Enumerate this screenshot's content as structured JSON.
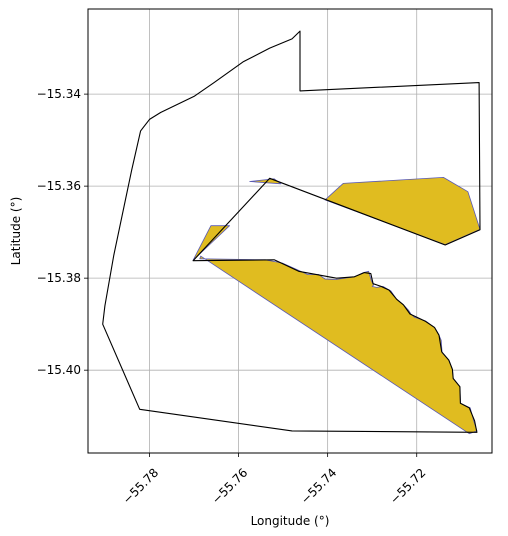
{
  "chart_data": {
    "type": "map",
    "xlabel": "Longitude (°)",
    "ylabel": "Latitude (°)",
    "xlim": [
      -55.7938,
      -55.7031
    ],
    "ylim": [
      -15.418,
      -15.3215
    ],
    "grid": true,
    "x_ticks": [
      {
        "value": -55.78,
        "label": "−55.78"
      },
      {
        "value": -55.76,
        "label": "−55.76"
      },
      {
        "value": -55.74,
        "label": "−55.74"
      },
      {
        "value": -55.72,
        "label": "−55.72"
      }
    ],
    "y_ticks": [
      {
        "value": -15.34,
        "label": "−15.34"
      },
      {
        "value": -15.36,
        "label": "−15.36"
      },
      {
        "value": -15.38,
        "label": "−15.38"
      },
      {
        "value": -15.4,
        "label": "−15.40"
      }
    ],
    "colors": {
      "fill": "#e0bc20",
      "fill_edge": "#5a5ab4",
      "outline": "#000000"
    },
    "filled_regions": [
      [
        [
          -55.7687,
          -15.3758
        ],
        [
          -55.754,
          -15.376
        ],
        [
          -55.7502,
          -15.3767
        ],
        [
          -55.747,
          -15.3781
        ],
        [
          -55.7445,
          -15.3792
        ],
        [
          -55.742,
          -15.3792
        ],
        [
          -55.7406,
          -15.3802
        ],
        [
          -55.7382,
          -15.3803
        ],
        [
          -55.734,
          -15.3797
        ],
        [
          -55.732,
          -15.3788
        ],
        [
          -55.7308,
          -15.3785
        ],
        [
          -55.7302,
          -15.3805
        ],
        [
          -55.7297,
          -15.3815
        ],
        [
          -55.73,
          -15.3818
        ],
        [
          -55.729,
          -15.382
        ],
        [
          -55.7276,
          -15.3818
        ],
        [
          -55.7258,
          -15.3828
        ],
        [
          -55.7245,
          -15.3846
        ],
        [
          -55.723,
          -15.3858
        ],
        [
          -55.7218,
          -15.387
        ],
        [
          -55.7213,
          -15.3878
        ],
        [
          -55.7205,
          -15.3885
        ],
        [
          -55.718,
          -15.3893
        ],
        [
          -55.716,
          -15.3907
        ],
        [
          -55.715,
          -15.3924
        ],
        [
          -55.7145,
          -15.3935
        ],
        [
          -55.7143,
          -15.3962
        ],
        [
          -55.7128,
          -15.3978
        ],
        [
          -55.712,
          -15.3998
        ],
        [
          -55.7118,
          -15.4018
        ],
        [
          -55.7103,
          -15.4036
        ],
        [
          -55.7102,
          -15.4072
        ],
        [
          -55.708,
          -15.4082
        ],
        [
          -55.7072,
          -15.411
        ],
        [
          -55.7065,
          -15.4132
        ],
        [
          -55.7082,
          -15.4138
        ],
        [
          -55.7685,
          -15.3752
        ]
      ],
      [
        [
          -55.7702,
          -15.3761
        ],
        [
          -55.7662,
          -15.3686
        ],
        [
          -55.762,
          -15.3686
        ]
      ],
      [
        [
          -55.7575,
          -15.359
        ],
        [
          -55.752,
          -15.3584
        ],
        [
          -55.7505,
          -15.3595
        ]
      ],
      [
        [
          -55.7406,
          -15.363
        ],
        [
          -55.7365,
          -15.3594
        ],
        [
          -55.714,
          -15.3581
        ],
        [
          -55.7085,
          -15.3612
        ],
        [
          -55.7058,
          -15.3694
        ],
        [
          -55.7136,
          -15.3727
        ]
      ]
    ],
    "outline_polygons": [
      [
        [
          -55.7462,
          -15.3263
        ],
        [
          -55.7462,
          -15.3393
        ],
        [
          -55.706,
          -15.3375
        ],
        [
          -55.7058,
          -15.3695
        ],
        [
          -55.7136,
          -15.3728
        ],
        [
          -55.753,
          -15.3583
        ],
        [
          -55.7702,
          -15.3762
        ],
        [
          -55.752,
          -15.376
        ],
        [
          -55.7465,
          -15.3785
        ],
        [
          -55.742,
          -15.3793
        ],
        [
          -55.738,
          -15.38
        ],
        [
          -55.734,
          -15.3797
        ],
        [
          -55.7318,
          -15.3788
        ],
        [
          -55.7303,
          -15.379
        ],
        [
          -55.7298,
          -15.3812
        ],
        [
          -55.728,
          -15.3818
        ],
        [
          -55.7262,
          -15.3826
        ],
        [
          -55.7245,
          -15.3846
        ],
        [
          -55.723,
          -15.3858
        ],
        [
          -55.7215,
          -15.3878
        ],
        [
          -55.718,
          -15.3894
        ],
        [
          -55.716,
          -15.3907
        ],
        [
          -55.715,
          -15.3924
        ],
        [
          -55.7144,
          -15.396
        ],
        [
          -55.7128,
          -15.3978
        ],
        [
          -55.712,
          -15.3998
        ],
        [
          -55.7118,
          -15.4018
        ],
        [
          -55.7103,
          -15.4036
        ],
        [
          -55.7102,
          -15.4072
        ],
        [
          -55.7082,
          -15.4082
        ],
        [
          -55.707,
          -15.411
        ],
        [
          -55.7065,
          -15.4135
        ],
        [
          -55.748,
          -15.4132
        ],
        [
          -55.7822,
          -15.4085
        ],
        [
          -55.7905,
          -15.39
        ],
        [
          -55.79,
          -15.386
        ],
        [
          -55.788,
          -15.375
        ],
        [
          -55.784,
          -15.3565
        ],
        [
          -55.782,
          -15.348
        ],
        [
          -55.78,
          -15.3455
        ],
        [
          -55.7775,
          -15.344
        ],
        [
          -55.77,
          -15.3405
        ],
        [
          -55.7655,
          -15.3375
        ],
        [
          -55.759,
          -15.333
        ],
        [
          -55.753,
          -15.33
        ],
        [
          -55.748,
          -15.328
        ]
      ]
    ]
  }
}
